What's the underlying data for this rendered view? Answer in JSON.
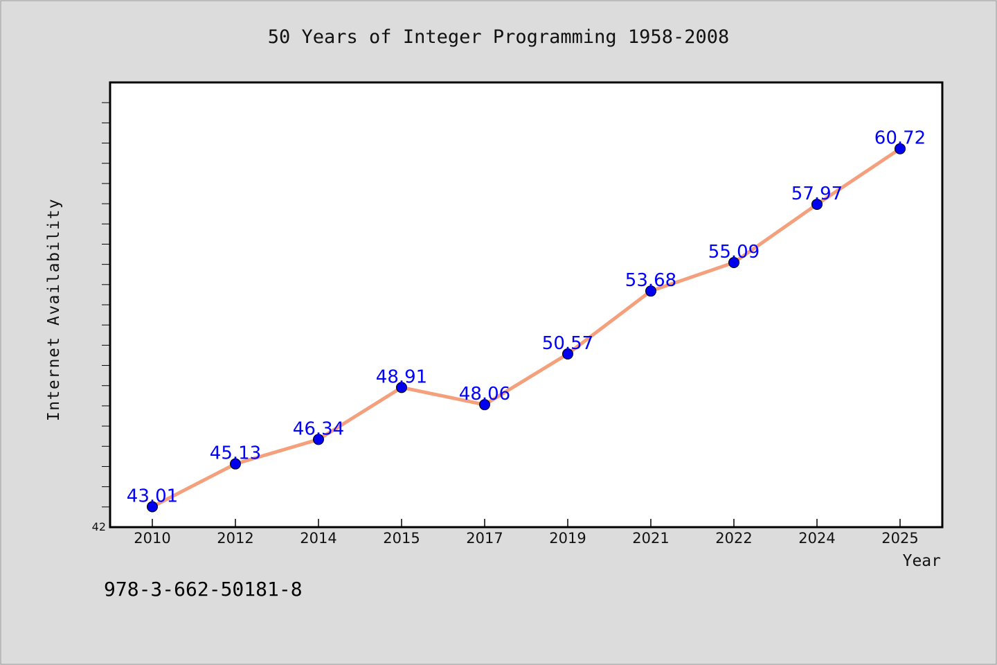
{
  "chart_data": {
    "type": "line",
    "title": "50 Years of Integer Programming 1958-2008",
    "xlabel": "Year",
    "ylabel": "Internet Availability",
    "categories": [
      "2010",
      "2012",
      "2014",
      "2015",
      "2017",
      "2019",
      "2021",
      "2022",
      "2024",
      "2025"
    ],
    "values": [
      43.01,
      45.13,
      46.34,
      48.91,
      48.06,
      50.57,
      53.68,
      55.09,
      57.97,
      60.72
    ],
    "data_labels": [
      "43.01",
      "45.13",
      "46.34",
      "48.91",
      "48.06",
      "50.57",
      "53.68",
      "55.09",
      "57.97",
      "60.72"
    ],
    "ylim": [
      42,
      64
    ],
    "y_tick_label": "42",
    "grid": false,
    "legend": "none",
    "colors": {
      "line": "#f4a07c",
      "marker": "#0000ee",
      "data_label": "#0000ff",
      "background": "#dcdcdc",
      "plot_background": "#ffffff"
    }
  },
  "footer_text": "978-3-662-50181-8"
}
